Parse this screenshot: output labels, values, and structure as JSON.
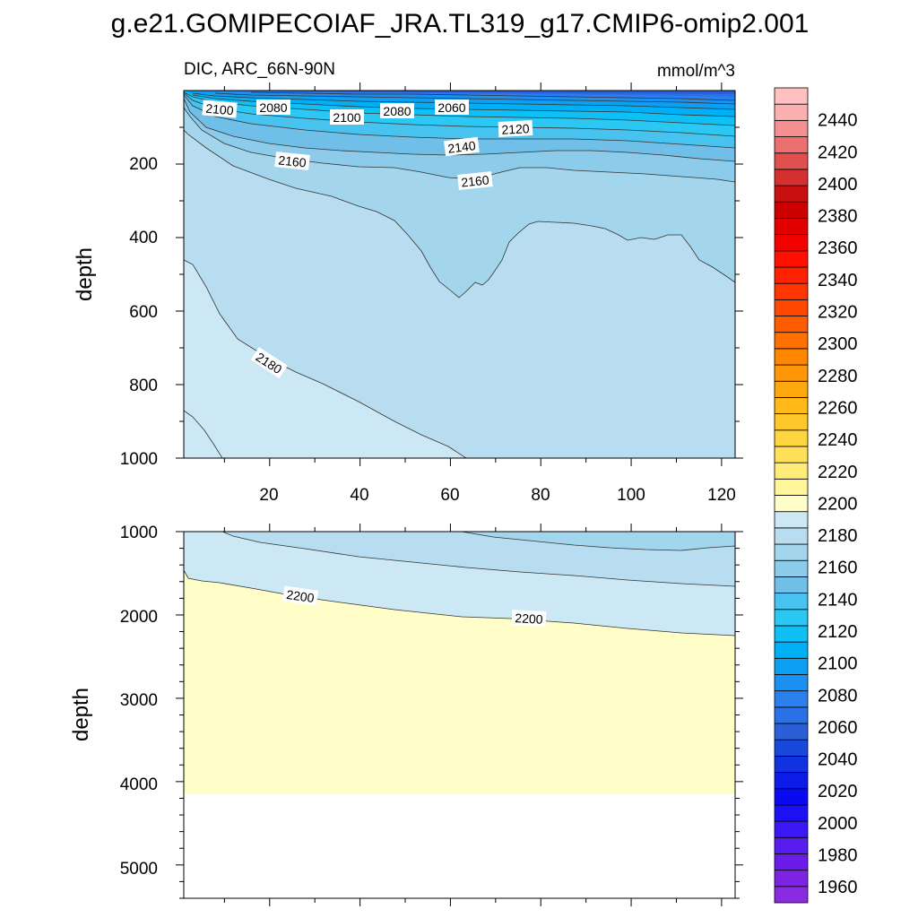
{
  "chart_data": [
    {
      "type": "contour",
      "title": "g.e21.GOMIPECOIAF_JRA.TL319_g17.CMIP6-omip2.001",
      "left_string": "DIC, ARC_66N-90N",
      "right_string": "mmol/m^3",
      "xlabel": "",
      "ylabel": "depth",
      "xlim": [
        1,
        123
      ],
      "ylim": [
        1000,
        0
      ],
      "x_ticks": [
        20,
        40,
        60,
        80,
        100,
        120
      ],
      "x_tick_labels": [
        "20",
        "40",
        "60",
        "80",
        "100",
        "120"
      ],
      "y_ticks": [
        200,
        400,
        600,
        800,
        1000
      ],
      "y_tick_labels": [
        "200",
        "400",
        "600",
        "800",
        "1000"
      ],
      "contour_labels": [
        {
          "text": "2100",
          "x": 9,
          "y": 50
        },
        {
          "text": "2080",
          "x": 22,
          "y": 45
        },
        {
          "text": "2100",
          "x": 38,
          "y": 72
        },
        {
          "text": "2080",
          "x": 48,
          "y": 55
        },
        {
          "text": "2060",
          "x": 60,
          "y": 45
        },
        {
          "text": "2120",
          "x": 75,
          "y": 100
        },
        {
          "text": "2140",
          "x": 63,
          "y": 155
        },
        {
          "text": "2160",
          "x": 25,
          "y": 240
        },
        {
          "text": "2160",
          "x": 66,
          "y": 245
        },
        {
          "text": "2180",
          "x": 20,
          "y": 720
        }
      ]
    },
    {
      "type": "contour",
      "xlabel": "",
      "ylabel": "depth",
      "xlim": [
        1,
        123
      ],
      "ylim": [
        5400,
        1000
      ],
      "y_ticks": [
        1000,
        2000,
        3000,
        4000,
        5000
      ],
      "y_tick_labels": [
        "1000",
        "2000",
        "3000",
        "4000",
        "5000"
      ],
      "max_depth": 4100,
      "contour_labels": [
        {
          "text": "2200",
          "x": 28,
          "y": 1770
        },
        {
          "text": "2200",
          "x": 78,
          "y": 2040
        }
      ]
    }
  ],
  "colorbar": {
    "min": 1950,
    "max": 2460,
    "step": 10,
    "labels": [
      "2440",
      "2420",
      "2400",
      "2380",
      "2360",
      "2340",
      "2320",
      "2300",
      "2280",
      "2260",
      "2240",
      "2220",
      "2200",
      "2180",
      "2160",
      "2140",
      "2120",
      "2100",
      "2080",
      "2060",
      "2040",
      "2020",
      "2000",
      "1980",
      "1960"
    ],
    "colors_bottom_to_top": [
      "#8a2be2",
      "#7e22e4",
      "#6b1cea",
      "#581cf0",
      "#3b18f5",
      "#1d10f5",
      "#0a0af0",
      "#0c1ce6",
      "#1032e0",
      "#1848dc",
      "#2a5fd8",
      "#2b70e6",
      "#2a80ee",
      "#1c8ff2",
      "#0ca0f4",
      "#00b0f6",
      "#0ec0f5",
      "#2ac8f2",
      "#48c2ee",
      "#70bfe8",
      "#8ccbea",
      "#a3d5ec",
      "#b9ddf0",
      "#cde8f5",
      "#fffec8",
      "#fff59a",
      "#ffeb78",
      "#ffe05a",
      "#ffd640",
      "#ffc82a",
      "#ffba18",
      "#ffa80e",
      "#ff9808",
      "#ff8600",
      "#ff7000",
      "#ff5c00",
      "#ff4800",
      "#ff3600",
      "#ff2200",
      "#ff1000",
      "#f50000",
      "#e00000",
      "#cc0000",
      "#c81010",
      "#d43030",
      "#e05050",
      "#ec7070",
      "#f49090",
      "#fab0b0",
      "#ffc0c0"
    ]
  }
}
